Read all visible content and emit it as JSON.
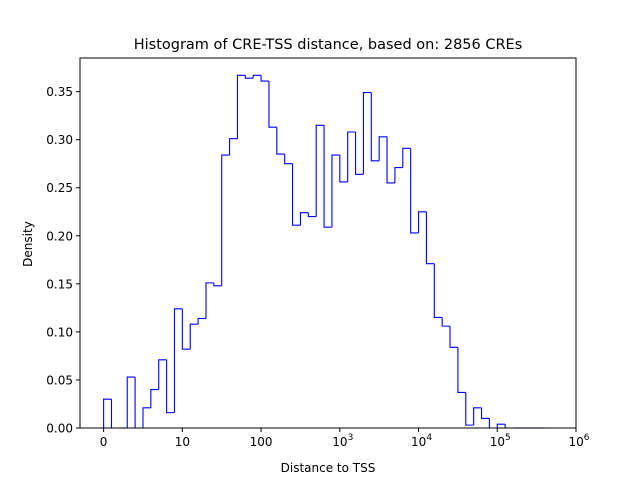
{
  "chart_data": {
    "type": "histogram",
    "title": "Histogram of CRE-TSS distance, based on: 2856 CREs",
    "xlabel": "Distance to TSS",
    "ylabel": "Density",
    "x_scale": "log10(distance) with 0 shown at the left edge",
    "xlim_log10": [
      -0.3,
      6.0
    ],
    "ylim": [
      0,
      0.385
    ],
    "x_ticks": [
      {
        "pos": 0,
        "label": "0",
        "base": "",
        "exp": ""
      },
      {
        "pos": 1,
        "label": "10",
        "base": "",
        "exp": ""
      },
      {
        "pos": 2,
        "label": "100",
        "base": "",
        "exp": ""
      },
      {
        "pos": 3,
        "label": "",
        "base": "10",
        "exp": "3"
      },
      {
        "pos": 4,
        "label": "",
        "base": "10",
        "exp": "4"
      },
      {
        "pos": 5,
        "label": "",
        "base": "10",
        "exp": "5"
      },
      {
        "pos": 6,
        "label": "",
        "base": "10",
        "exp": "6"
      }
    ],
    "y_ticks": [
      "0.00",
      "0.05",
      "0.10",
      "0.15",
      "0.20",
      "0.25",
      "0.30",
      "0.35"
    ],
    "y_tick_values": [
      0,
      0.05,
      0.1,
      0.15,
      0.2,
      0.25,
      0.3,
      0.35
    ],
    "bin_edges_log10": [
      0,
      0.1,
      0.2,
      0.3,
      0.4,
      0.5,
      0.6,
      0.7,
      0.8,
      0.9,
      1.0,
      1.1,
      1.2,
      1.3,
      1.4,
      1.5,
      1.6,
      1.7,
      1.8,
      1.9,
      2.0,
      2.1,
      2.2,
      2.3,
      2.4,
      2.5,
      2.6,
      2.7,
      2.8,
      2.9,
      3.0,
      3.1,
      3.2,
      3.3,
      3.4,
      3.5,
      3.6,
      3.7,
      3.8,
      3.9,
      4.0,
      4.1,
      4.2,
      4.3,
      4.4,
      4.5,
      4.6,
      4.7,
      4.8,
      4.9,
      5.0,
      5.1,
      5.2,
      5.3,
      5.4,
      5.5,
      5.6
    ],
    "density": [
      0.03,
      0.0,
      0.0,
      0.053,
      0.0,
      0.021,
      0.04,
      0.071,
      0.016,
      0.124,
      0.082,
      0.108,
      0.114,
      0.151,
      0.148,
      0.284,
      0.301,
      0.367,
      0.364,
      0.367,
      0.361,
      0.313,
      0.285,
      0.275,
      0.211,
      0.224,
      0.22,
      0.315,
      0.209,
      0.284,
      0.256,
      0.308,
      0.264,
      0.349,
      0.278,
      0.303,
      0.255,
      0.271,
      0.291,
      0.203,
      0.225,
      0.171,
      0.115,
      0.106,
      0.084,
      0.037,
      0.003,
      0.021,
      0.01,
      0.0,
      0.004,
      0.0,
      0.0,
      0.0,
      0.0,
      0.0
    ],
    "color": "#0000ff",
    "grid": false,
    "legend": "none"
  }
}
